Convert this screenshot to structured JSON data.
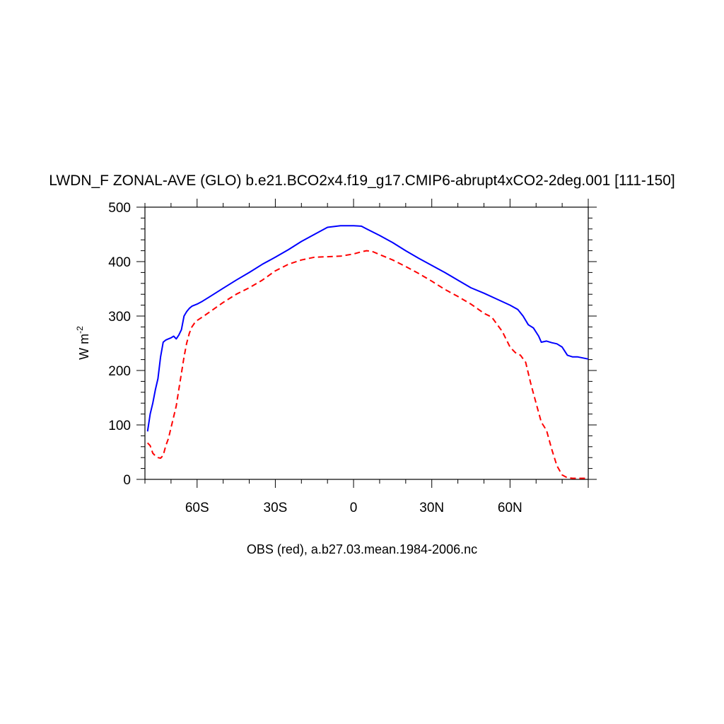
{
  "chart_data": {
    "type": "line",
    "title": "LWDN_F ZONAL-AVE (GLO) b.e21.BCO2x4.f19_g17.CMIP6-abrupt4xCO2-2deg.001 [111-150]",
    "subtitle": "OBS (red), a.b27.03.mean.1984-2006.nc",
    "ylabel_main": "W m",
    "ylabel_sup": "-2",
    "xlim": [
      -80,
      90
    ],
    "ylim": [
      0,
      500
    ],
    "x_ticks": [
      {
        "value": -60,
        "label": "60S"
      },
      {
        "value": -30,
        "label": "30S"
      },
      {
        "value": 0,
        "label": "0"
      },
      {
        "value": 30,
        "label": "30N"
      },
      {
        "value": 60,
        "label": "60N"
      }
    ],
    "y_ticks": [
      {
        "value": 0,
        "label": "0"
      },
      {
        "value": 100,
        "label": "100"
      },
      {
        "value": 200,
        "label": "200"
      },
      {
        "value": 300,
        "label": "300"
      },
      {
        "value": 400,
        "label": "400"
      },
      {
        "value": 500,
        "label": "500"
      }
    ],
    "series": [
      {
        "color": "#0000ff",
        "dash": "solid",
        "x": [
          -79,
          -78,
          -77,
          -76,
          -75,
          -74,
          -73,
          -72,
          -71,
          -70,
          -69,
          -68,
          -67,
          -66,
          -65,
          -64,
          -63,
          -62,
          -61,
          -60,
          -58,
          -55,
          -50,
          -45,
          -40,
          -35,
          -30,
          -25,
          -20,
          -15,
          -10,
          -5,
          0,
          3,
          5,
          10,
          15,
          20,
          25,
          30,
          35,
          40,
          45,
          50,
          55,
          60,
          63,
          65,
          67,
          69,
          71,
          72,
          74,
          76,
          78,
          80,
          82,
          84,
          86,
          88,
          90
        ],
        "y": [
          88,
          120,
          140,
          165,
          185,
          225,
          252,
          256,
          258,
          260,
          263,
          258,
          265,
          275,
          300,
          308,
          314,
          318,
          320,
          322,
          327,
          336,
          351,
          366,
          380,
          395,
          408,
          422,
          437,
          450,
          463,
          466,
          466,
          465,
          460,
          448,
          435,
          420,
          406,
          393,
          380,
          366,
          352,
          342,
          331,
          320,
          312,
          300,
          284,
          278,
          263,
          252,
          254,
          251,
          249,
          243,
          228,
          225,
          225,
          223,
          221
        ]
      },
      {
        "color": "#ff0000",
        "dash": "dashed",
        "x": [
          -79,
          -78,
          -77,
          -76,
          -75,
          -74,
          -73,
          -72,
          -71,
          -70,
          -69,
          -68,
          -67,
          -66,
          -65,
          -64,
          -63,
          -62,
          -61,
          -60,
          -58,
          -55,
          -50,
          -45,
          -40,
          -35,
          -30,
          -25,
          -20,
          -15,
          -10,
          -5,
          0,
          3,
          5,
          7,
          10,
          15,
          20,
          25,
          30,
          35,
          40,
          45,
          50,
          53,
          55,
          57,
          60,
          62,
          64,
          66,
          68,
          70,
          72,
          74,
          76,
          78,
          80,
          82,
          84,
          86,
          88,
          90
        ],
        "y": [
          67,
          62,
          48,
          43,
          40,
          39,
          44,
          62,
          75,
          95,
          115,
          135,
          165,
          195,
          225,
          250,
          268,
          280,
          287,
          292,
          298,
          308,
          325,
          340,
          352,
          366,
          383,
          395,
          403,
          408,
          409,
          410,
          414,
          418,
          420,
          419,
          413,
          403,
          391,
          378,
          364,
          349,
          336,
          322,
          305,
          298,
          285,
          272,
          243,
          233,
          228,
          215,
          175,
          140,
          105,
          90,
          55,
          25,
          8,
          3,
          2,
          2,
          2,
          2
        ]
      }
    ]
  }
}
